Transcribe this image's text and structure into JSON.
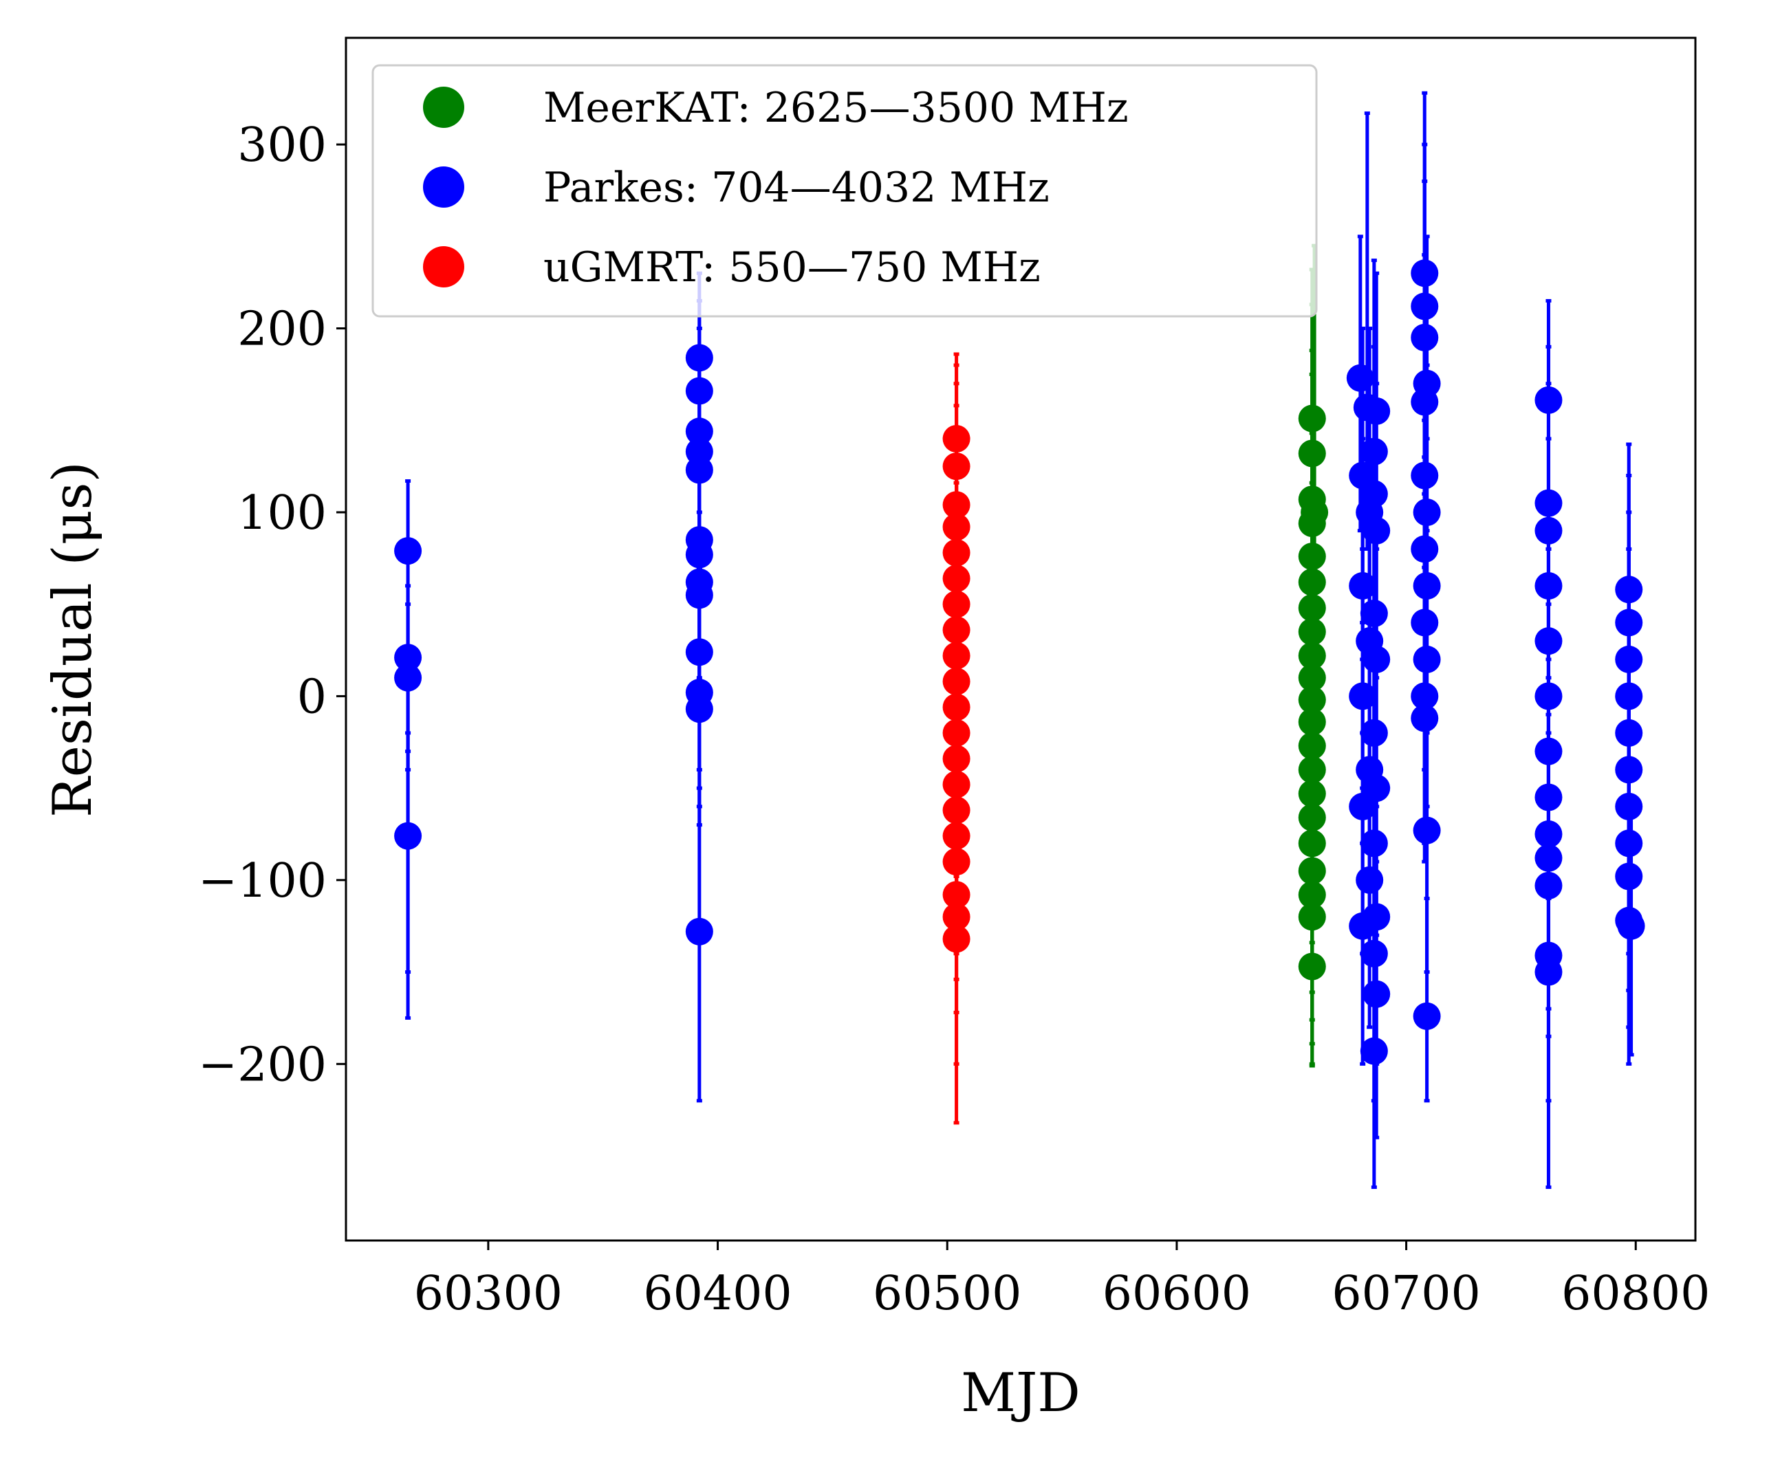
{
  "chart_data": {
    "type": "scatter",
    "title": "",
    "xlabel": "MJD",
    "ylabel": "Residual (μs)",
    "xlim": [
      60238,
      60826
    ],
    "ylim": [
      -296,
      358
    ],
    "xticks": [
      60300,
      60400,
      60500,
      60600,
      60700,
      60800
    ],
    "xtick_labels": [
      "60300",
      "60400",
      "60500",
      "60600",
      "60700",
      "60800"
    ],
    "yticks": [
      -200,
      -100,
      0,
      100,
      200,
      300
    ],
    "ytick_labels": [
      "−200",
      "−100",
      "0",
      "100",
      "200",
      "300"
    ],
    "legend_position": "upper-left",
    "series": [
      {
        "name": "MeerKAT: 2625—3500 MHz",
        "color": "#008000",
        "points": [
          {
            "x": 60659,
            "y": 151,
            "lo": 70,
            "hi": 232
          },
          {
            "x": 60659,
            "y": 132,
            "lo": 51,
            "hi": 213
          },
          {
            "x": 60659,
            "y": 107,
            "lo": 26,
            "hi": 188
          },
          {
            "x": 60659,
            "y": 94,
            "lo": 13,
            "hi": 175
          },
          {
            "x": 60659,
            "y": 76,
            "lo": -5,
            "hi": 157
          },
          {
            "x": 60659,
            "y": 62,
            "lo": -19,
            "hi": 143
          },
          {
            "x": 60659,
            "y": 48,
            "lo": -33,
            "hi": 129
          },
          {
            "x": 60659,
            "y": 35,
            "lo": -46,
            "hi": 116
          },
          {
            "x": 60659,
            "y": 22,
            "lo": -59,
            "hi": 103
          },
          {
            "x": 60659,
            "y": 10,
            "lo": -71,
            "hi": 91
          },
          {
            "x": 60659,
            "y": -2,
            "lo": -83,
            "hi": 79
          },
          {
            "x": 60659,
            "y": -14,
            "lo": -95,
            "hi": 67
          },
          {
            "x": 60659,
            "y": -27,
            "lo": -108,
            "hi": 54
          },
          {
            "x": 60659,
            "y": -40,
            "lo": -121,
            "hi": 41
          },
          {
            "x": 60659,
            "y": -53,
            "lo": -134,
            "hi": 28
          },
          {
            "x": 60659,
            "y": -66,
            "lo": -147,
            "hi": 15
          },
          {
            "x": 60659,
            "y": -80,
            "lo": -161,
            "hi": 1
          },
          {
            "x": 60659,
            "y": -95,
            "lo": -176,
            "hi": -14
          },
          {
            "x": 60659,
            "y": -108,
            "lo": -189,
            "hi": -27
          },
          {
            "x": 60659,
            "y": -120,
            "lo": -201,
            "hi": -39
          },
          {
            "x": 60659,
            "y": -147,
            "lo": -200,
            "hi": -94
          },
          {
            "x": 60660,
            "y": 100,
            "lo": -6,
            "hi": 245
          }
        ]
      },
      {
        "name": "Parkes: 704—4032 MHz",
        "color": "#0000ff",
        "points": [
          {
            "x": 60265,
            "y": 79,
            "lo": -175,
            "hi": 117
          },
          {
            "x": 60265,
            "y": 21,
            "lo": -30,
            "hi": 60
          },
          {
            "x": 60265,
            "y": 10,
            "lo": -40,
            "hi": 50
          },
          {
            "x": 60265,
            "y": -76,
            "lo": -150,
            "hi": -20
          },
          {
            "x": 60392,
            "y": 184,
            "lo": 120,
            "hi": 230
          },
          {
            "x": 60392,
            "y": 166,
            "lo": 100,
            "hi": 215
          },
          {
            "x": 60392,
            "y": 144,
            "lo": 80,
            "hi": 200
          },
          {
            "x": 60392,
            "y": 133,
            "lo": 70,
            "hi": 190
          },
          {
            "x": 60392,
            "y": 123,
            "lo": 60,
            "hi": 180
          },
          {
            "x": 60392,
            "y": 85,
            "lo": 20,
            "hi": 150
          },
          {
            "x": 60392,
            "y": 77,
            "lo": 10,
            "hi": 140
          },
          {
            "x": 60392,
            "y": 62,
            "lo": -5,
            "hi": 125
          },
          {
            "x": 60392,
            "y": 55,
            "lo": -10,
            "hi": 120
          },
          {
            "x": 60392,
            "y": 24,
            "lo": -40,
            "hi": 90
          },
          {
            "x": 60392,
            "y": 2,
            "lo": -60,
            "hi": 70
          },
          {
            "x": 60392,
            "y": -7,
            "lo": -70,
            "hi": 60
          },
          {
            "x": 60392,
            "y": -128,
            "lo": -220,
            "hi": -50
          },
          {
            "x": 60680,
            "y": 173,
            "lo": 90,
            "hi": 250
          },
          {
            "x": 60681,
            "y": 120,
            "lo": 40,
            "hi": 200
          },
          {
            "x": 60681,
            "y": 60,
            "lo": -20,
            "hi": 140
          },
          {
            "x": 60681,
            "y": 0,
            "lo": -80,
            "hi": 80
          },
          {
            "x": 60681,
            "y": -60,
            "lo": -140,
            "hi": 20
          },
          {
            "x": 60681,
            "y": -125,
            "lo": -200,
            "hi": -50
          },
          {
            "x": 60683,
            "y": 157,
            "lo": 80,
            "hi": 317
          },
          {
            "x": 60684,
            "y": 100,
            "lo": 20,
            "hi": 200
          },
          {
            "x": 60684,
            "y": 30,
            "lo": -50,
            "hi": 110
          },
          {
            "x": 60684,
            "y": -40,
            "lo": -120,
            "hi": 40
          },
          {
            "x": 60684,
            "y": -100,
            "lo": -180,
            "hi": -20
          },
          {
            "x": 60686,
            "y": 133,
            "lo": 60,
            "hi": 237
          },
          {
            "x": 60686,
            "y": 110,
            "lo": 30,
            "hi": 190
          },
          {
            "x": 60686,
            "y": 45,
            "lo": -35,
            "hi": 125
          },
          {
            "x": 60686,
            "y": -20,
            "lo": -100,
            "hi": 60
          },
          {
            "x": 60686,
            "y": -80,
            "lo": -160,
            "hi": 0
          },
          {
            "x": 60686,
            "y": -140,
            "lo": -220,
            "hi": -60
          },
          {
            "x": 60686,
            "y": -193,
            "lo": -267,
            "hi": -120
          },
          {
            "x": 60687,
            "y": 155,
            "lo": 80,
            "hi": 230
          },
          {
            "x": 60687,
            "y": 90,
            "lo": 10,
            "hi": 170
          },
          {
            "x": 60687,
            "y": 20,
            "lo": -60,
            "hi": 100
          },
          {
            "x": 60687,
            "y": -50,
            "lo": -130,
            "hi": 30
          },
          {
            "x": 60687,
            "y": -120,
            "lo": -200,
            "hi": -40
          },
          {
            "x": 60687,
            "y": -162,
            "lo": -240,
            "hi": -90
          },
          {
            "x": 60708,
            "y": 230,
            "lo": 150,
            "hi": 328
          },
          {
            "x": 60708,
            "y": 212,
            "lo": 130,
            "hi": 300
          },
          {
            "x": 60708,
            "y": 195,
            "lo": 110,
            "hi": 280
          },
          {
            "x": 60708,
            "y": 160,
            "lo": 80,
            "hi": 240
          },
          {
            "x": 60708,
            "y": 120,
            "lo": 40,
            "hi": 200
          },
          {
            "x": 60708,
            "y": 80,
            "lo": 0,
            "hi": 160
          },
          {
            "x": 60708,
            "y": 40,
            "lo": -40,
            "hi": 120
          },
          {
            "x": 60708,
            "y": 0,
            "lo": -80,
            "hi": 80
          },
          {
            "x": 60708,
            "y": -12,
            "lo": -90,
            "hi": 70
          },
          {
            "x": 60709,
            "y": 170,
            "lo": 90,
            "hi": 250
          },
          {
            "x": 60709,
            "y": 100,
            "lo": 20,
            "hi": 180
          },
          {
            "x": 60709,
            "y": 60,
            "lo": -20,
            "hi": 140
          },
          {
            "x": 60709,
            "y": 20,
            "lo": -60,
            "hi": 100
          },
          {
            "x": 60709,
            "y": -73,
            "lo": -150,
            "hi": 0
          },
          {
            "x": 60709,
            "y": -174,
            "lo": -220,
            "hi": -110
          },
          {
            "x": 60762,
            "y": 161,
            "lo": 80,
            "hi": 215
          },
          {
            "x": 60762,
            "y": 105,
            "lo": 20,
            "hi": 190
          },
          {
            "x": 60762,
            "y": 90,
            "lo": 10,
            "hi": 170
          },
          {
            "x": 60762,
            "y": 60,
            "lo": -20,
            "hi": 140
          },
          {
            "x": 60762,
            "y": 30,
            "lo": -50,
            "hi": 110
          },
          {
            "x": 60762,
            "y": 0,
            "lo": -80,
            "hi": 80
          },
          {
            "x": 60762,
            "y": -30,
            "lo": -110,
            "hi": 50
          },
          {
            "x": 60762,
            "y": -55,
            "lo": -135,
            "hi": 25
          },
          {
            "x": 60762,
            "y": -75,
            "lo": -155,
            "hi": 5
          },
          {
            "x": 60762,
            "y": -88,
            "lo": -170,
            "hi": -10
          },
          {
            "x": 60762,
            "y": -103,
            "lo": -185,
            "hi": -25
          },
          {
            "x": 60762,
            "y": -141,
            "lo": -220,
            "hi": -60
          },
          {
            "x": 60762,
            "y": -150,
            "lo": -267,
            "hi": -70
          },
          {
            "x": 60797,
            "y": 58,
            "lo": -20,
            "hi": 137
          },
          {
            "x": 60797,
            "y": 40,
            "lo": -40,
            "hi": 120
          },
          {
            "x": 60797,
            "y": 20,
            "lo": -60,
            "hi": 100
          },
          {
            "x": 60797,
            "y": 0,
            "lo": -80,
            "hi": 80
          },
          {
            "x": 60797,
            "y": -20,
            "lo": -100,
            "hi": 60
          },
          {
            "x": 60797,
            "y": -40,
            "lo": -120,
            "hi": 40
          },
          {
            "x": 60797,
            "y": -60,
            "lo": -140,
            "hi": 20
          },
          {
            "x": 60797,
            "y": -80,
            "lo": -160,
            "hi": 0
          },
          {
            "x": 60797,
            "y": -98,
            "lo": -180,
            "hi": -20
          },
          {
            "x": 60797,
            "y": -122,
            "lo": -200,
            "hi": -45
          },
          {
            "x": 60798,
            "y": -125,
            "lo": -195,
            "hi": -55
          }
        ]
      },
      {
        "name": "uGMRT: 550—750 MHz",
        "color": "#ff0000",
        "points": [
          {
            "x": 60504,
            "y": 140,
            "lo": 95,
            "hi": 186
          },
          {
            "x": 60504,
            "y": 125,
            "lo": 60,
            "hi": 180
          },
          {
            "x": 60504,
            "y": 104,
            "lo": 40,
            "hi": 170
          },
          {
            "x": 60504,
            "y": 92,
            "lo": 28,
            "hi": 158
          },
          {
            "x": 60504,
            "y": 78,
            "lo": 14,
            "hi": 144
          },
          {
            "x": 60504,
            "y": 64,
            "lo": 0,
            "hi": 130
          },
          {
            "x": 60504,
            "y": 50,
            "lo": -14,
            "hi": 116
          },
          {
            "x": 60504,
            "y": 36,
            "lo": -28,
            "hi": 102
          },
          {
            "x": 60504,
            "y": 22,
            "lo": -42,
            "hi": 88
          },
          {
            "x": 60504,
            "y": 8,
            "lo": -56,
            "hi": 74
          },
          {
            "x": 60504,
            "y": -6,
            "lo": -70,
            "hi": 60
          },
          {
            "x": 60504,
            "y": -20,
            "lo": -84,
            "hi": 46
          },
          {
            "x": 60504,
            "y": -34,
            "lo": -98,
            "hi": 32
          },
          {
            "x": 60504,
            "y": -48,
            "lo": -112,
            "hi": 18
          },
          {
            "x": 60504,
            "y": -62,
            "lo": -126,
            "hi": 4
          },
          {
            "x": 60504,
            "y": -76,
            "lo": -140,
            "hi": -10
          },
          {
            "x": 60504,
            "y": -90,
            "lo": -154,
            "hi": -24
          },
          {
            "x": 60504,
            "y": -108,
            "lo": -172,
            "hi": -42
          },
          {
            "x": 60504,
            "y": -120,
            "lo": -200,
            "hi": -54
          },
          {
            "x": 60504,
            "y": -132,
            "lo": -232,
            "hi": -66
          }
        ]
      }
    ]
  }
}
